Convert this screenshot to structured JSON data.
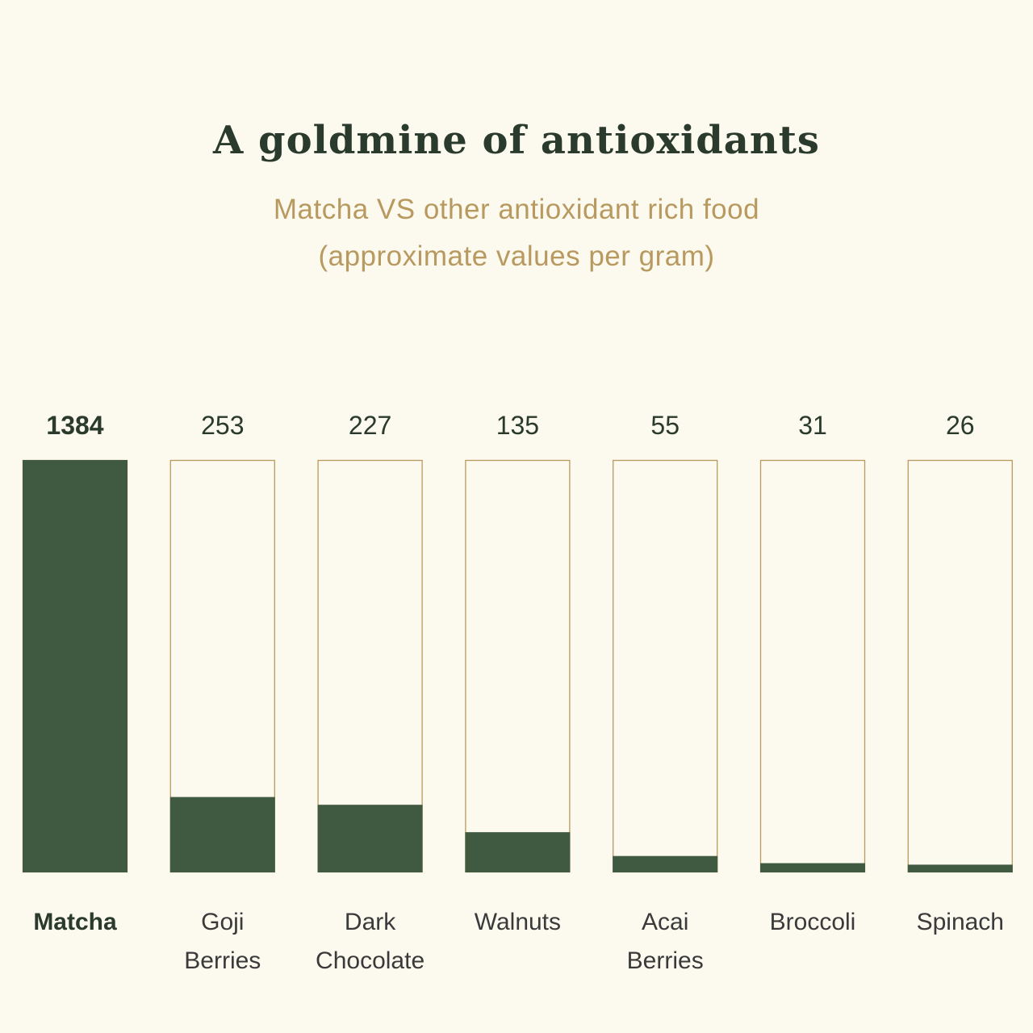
{
  "header": {
    "title": "A goldmine of antioxidants",
    "subtitle_line1": "Matcha VS other antioxidant rich food",
    "subtitle_line2": "(approximate values per gram)"
  },
  "colors": {
    "background": "#fcf9ee",
    "bar_fill": "#3f5a40",
    "bar_outline": "#b8995f",
    "title": "#2a3a2c",
    "subtitle": "#b8995f"
  },
  "chart_data": {
    "type": "bar",
    "title": "A goldmine of antioxidants",
    "subtitle": "Matcha VS other antioxidant rich food (approximate values per gram)",
    "categories": [
      [
        "Matcha"
      ],
      [
        "Goji",
        "Berries"
      ],
      [
        "Dark",
        "Chocolate"
      ],
      [
        "Walnuts"
      ],
      [
        "Acai",
        "Berries"
      ],
      [
        "Broccoli"
      ],
      [
        "Spinach"
      ]
    ],
    "values": [
      1384,
      253,
      227,
      135,
      55,
      31,
      26
    ],
    "value_labels": [
      "1384",
      "253",
      "227",
      "135",
      "55",
      "31",
      "26"
    ],
    "highlight_index": 0,
    "ylim": [
      0,
      1384
    ],
    "grid": false,
    "legend": "none",
    "xlabel": "",
    "ylabel": ""
  }
}
